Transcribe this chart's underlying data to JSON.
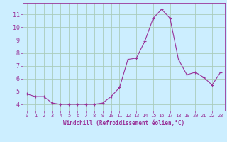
{
  "x": [
    0,
    1,
    2,
    3,
    4,
    5,
    6,
    7,
    8,
    9,
    10,
    11,
    12,
    13,
    14,
    15,
    16,
    17,
    18,
    19,
    20,
    21,
    22,
    23
  ],
  "y": [
    4.8,
    4.6,
    4.6,
    4.1,
    4.0,
    4.0,
    4.0,
    4.0,
    4.0,
    4.1,
    4.6,
    5.3,
    7.5,
    7.6,
    8.9,
    10.7,
    11.4,
    10.7,
    7.5,
    6.3,
    6.5,
    6.1,
    5.5,
    6.5
  ],
  "line_color": "#993399",
  "marker": "+",
  "marker_size": 3,
  "background_color": "#cceeff",
  "grid_color": "#aaccbb",
  "xlabel": "Windchill (Refroidissement éolien,°C)",
  "ylim": [
    3.5,
    11.9
  ],
  "xlim": [
    -0.5,
    23.5
  ],
  "yticks": [
    4,
    5,
    6,
    7,
    8,
    9,
    10,
    11
  ],
  "xticks": [
    0,
    1,
    2,
    3,
    4,
    5,
    6,
    7,
    8,
    9,
    10,
    11,
    12,
    13,
    14,
    15,
    16,
    17,
    18,
    19,
    20,
    21,
    22,
    23
  ],
  "tick_color": "#993399",
  "label_color": "#993399",
  "axis_color": "#993399",
  "xlabel_fontsize": 5.5,
  "tick_fontsize_x": 5.0,
  "tick_fontsize_y": 6.0
}
